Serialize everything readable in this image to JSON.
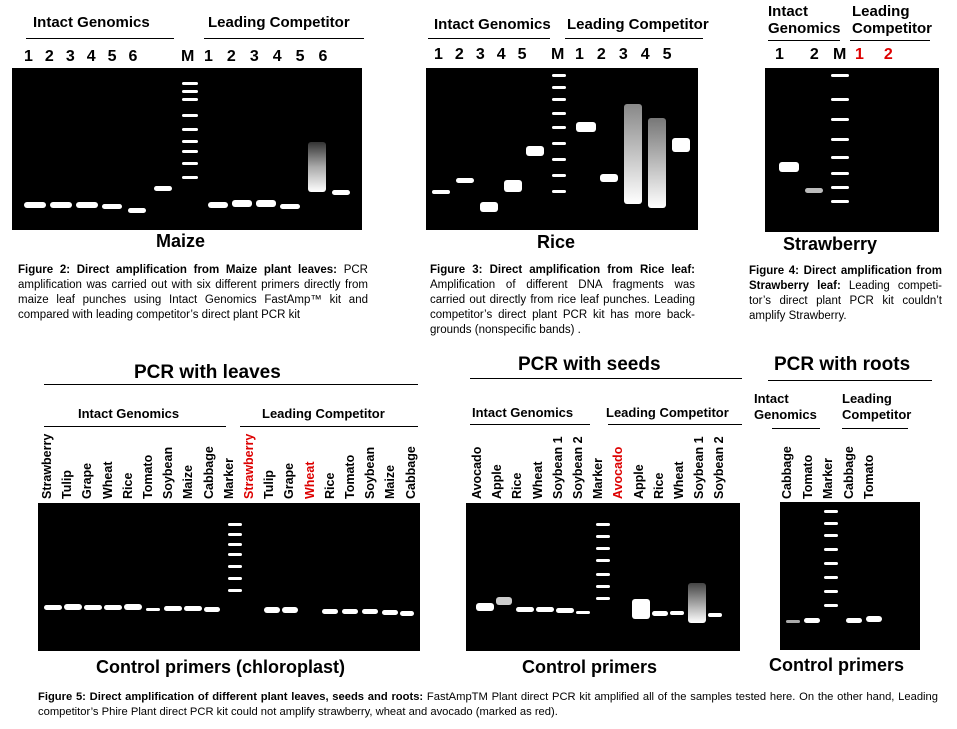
{
  "fig2": {
    "intact_label": "Intact Genomics",
    "competitor_label": "Leading Competitor",
    "lanes_left": [
      "1",
      "2",
      "3",
      "4",
      "5",
      "6"
    ],
    "marker": "M",
    "lanes_right": [
      "1",
      "2",
      "3",
      "4",
      "5",
      "6"
    ],
    "gel_title": "Maize",
    "caption_bold": "Figure 2: Direct amplification from Maize plant leaves:",
    "caption_text": " PCR amplification was carried out with six different primers directly from maize leaf punches using Intact Genomics FastAmp™ kit and compared with leading competitor’s direct plant PCR kit"
  },
  "fig3": {
    "intact_label": "Intact Genomics",
    "competitor_label": "Leading Competitor",
    "lanes_left": [
      "1",
      "2",
      "3",
      "4",
      "5"
    ],
    "marker": "M",
    "lanes_right": [
      "1",
      "2",
      "3",
      "4",
      "5"
    ],
    "gel_title": "Rice",
    "caption_bold": "Figure 3: Direct amplification from Rice leaf:",
    "caption_text": " Amplification of different DNA fragments was carried out directly from rice leaf punches. Leading competitor’s direct plant PCR kit has more back-grounds (nonspecific bands) ."
  },
  "fig4": {
    "intact_label_1": "Intact",
    "intact_label_2": "Genomics",
    "competitor_label_1": "Leading",
    "competitor_label_2": "Competitor",
    "lanes_left": [
      "1",
      "2"
    ],
    "marker": "M",
    "lanes_right": [
      "1",
      "2"
    ],
    "gel_title": "Strawberry",
    "caption_bold": "Figure 4: Direct amplification from Strawberry leaf:",
    "caption_text": " Leading competi-tor’s direct plant PCR kit couldn’t amplify Strawberry."
  },
  "fig5": {
    "leaves": {
      "title": "PCR with leaves",
      "intact_label": "Intact Genomics",
      "competitor_label": "Leading Competitor",
      "intact_lanes": [
        "Strawberry",
        "Tulip",
        "Grape",
        "Wheat",
        "Rice",
        "Tomato",
        "Soybean",
        "Maize",
        "Cabbage"
      ],
      "marker": "Marker",
      "competitor_lanes": [
        "Strawberry",
        "Tulip",
        "Grape",
        "Wheat",
        "Rice",
        "Tomato",
        "Soybean",
        "Maize",
        "Cabbage"
      ],
      "red_lanes": [
        "Strawberry",
        "Wheat"
      ],
      "footer": "Control primers (chloroplast)"
    },
    "seeds": {
      "title": "PCR with seeds",
      "intact_label": "Intact Genomics",
      "competitor_label": "Leading Competitor",
      "intact_lanes": [
        "Avocado",
        "Apple",
        "Rice",
        "Wheat",
        "Soybean 1",
        "Soybean 2"
      ],
      "marker": "Marker",
      "competitor_lanes": [
        "Avocado",
        "Apple",
        "Rice",
        "Wheat",
        "Soybean 1",
        "Soybean 2"
      ],
      "footer": "Control primers"
    },
    "roots": {
      "title": "PCR with roots",
      "intact_label_1": "Intact",
      "intact_label_2": "Genomics",
      "competitor_label_1": "Leading",
      "competitor_label_2": "Competitor",
      "intact_lanes": [
        "Cabbage",
        "Tomato"
      ],
      "marker": "Marker",
      "competitor_lanes": [
        "Cabbage",
        "Tomato"
      ],
      "footer": "Control primers"
    },
    "caption_bold": "Figure 5: Direct amplification of different plant leaves, seeds and roots:",
    "caption_text": " FastAmpTM Plant direct PCR kit amplified all of the samples tested here. On the other hand, Leading competitor’s Phire Plant direct PCR kit could not amplify strawberry, wheat and avocado (marked as red)."
  }
}
